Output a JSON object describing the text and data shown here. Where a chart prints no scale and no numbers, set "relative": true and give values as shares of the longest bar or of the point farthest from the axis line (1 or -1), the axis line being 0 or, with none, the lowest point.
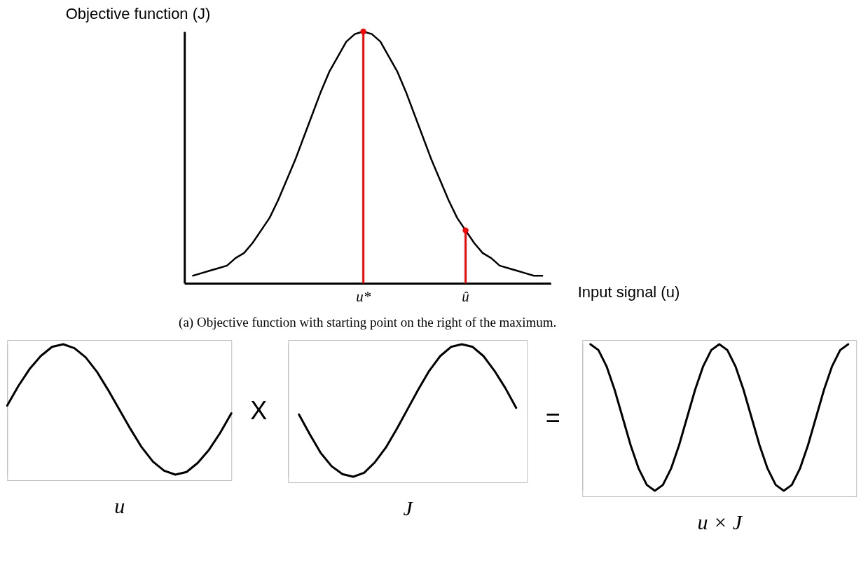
{
  "chart_data": [
    {
      "type": "line",
      "relative": true,
      "xlabel": "Input signal (u)",
      "ylabel": "Objective function (J)",
      "annotations": [
        "(a) Objective function with starting point on the right of the maximum."
      ],
      "categories": [
        null,
        null,
        null,
        null,
        null,
        null,
        null,
        null,
        null,
        null,
        null,
        null,
        null,
        null,
        null,
        null,
        null,
        null,
        null,
        null,
        "u*",
        null,
        null,
        null,
        null,
        null,
        null,
        null,
        null,
        null,
        null,
        null,
        "û",
        null,
        null,
        null,
        null,
        null,
        null,
        null,
        null,
        null
      ],
      "series": [
        {
          "color": "#000000",
          "values": [
            0.03,
            0.04,
            0.05,
            0.06,
            0.07,
            0.1,
            0.12,
            0.16,
            0.21,
            0.26,
            0.33,
            0.41,
            0.49,
            0.58,
            0.67,
            0.76,
            0.84,
            0.9,
            0.96,
            0.99,
            1,
            0.99,
            0.96,
            0.9,
            0.84,
            0.76,
            0.67,
            0.58,
            0.49,
            0.41,
            0.33,
            0.26,
            0.21,
            0.16,
            0.12,
            0.1,
            0.07,
            0.06,
            0.05,
            0.04,
            0.03,
            0.03
          ]
        },
        {
          "type": "lollipop",
          "color": "#ff0000",
          "x": [
            "u*",
            "û"
          ],
          "values": [
            1,
            0.21
          ]
        }
      ]
    },
    {
      "type": "line",
      "relative": true,
      "xlabel": "u",
      "categories": [
        null,
        null,
        null,
        null,
        null,
        null,
        null,
        null,
        null,
        null,
        null,
        null,
        null,
        null,
        null,
        null,
        null,
        null,
        null,
        null,
        null
      ],
      "color": "#000000",
      "values": [
        0.53,
        0.68,
        0.81,
        0.91,
        0.98,
        1.0,
        0.97,
        0.9,
        0.79,
        0.65,
        0.5,
        0.35,
        0.21,
        0.1,
        0.03,
        0,
        0.02,
        0.09,
        0.19,
        0.32,
        0.47
      ]
    },
    {
      "type": "line",
      "relative": true,
      "xlabel": "J",
      "annotations": [
        "X"
      ],
      "categories": [
        null,
        null,
        null,
        null,
        null,
        null,
        null,
        null,
        null,
        null,
        null,
        null,
        null,
        null,
        null,
        null,
        null,
        null,
        null,
        null,
        null
      ],
      "color": "#000000",
      "values": [
        0.47,
        0.32,
        0.18,
        0.08,
        0.02,
        0,
        0.03,
        0.11,
        0.22,
        0.36,
        0.51,
        0.66,
        0.8,
        0.91,
        0.98,
        1,
        0.98,
        0.91,
        0.8,
        0.67,
        0.52
      ]
    },
    {
      "type": "line",
      "relative": true,
      "xlabel": "u × J",
      "annotations": [
        "="
      ],
      "categories": [
        null,
        null,
        null,
        null,
        null,
        null,
        null,
        null,
        null,
        null,
        null,
        null,
        null,
        null,
        null,
        null,
        null,
        null,
        null,
        null,
        null,
        null,
        null,
        null,
        null,
        null,
        null,
        null,
        null,
        null,
        null,
        null,
        null
      ],
      "color": "#000000",
      "values": [
        1,
        0.96,
        0.85,
        0.69,
        0.5,
        0.31,
        0.15,
        0.04,
        0,
        0.04,
        0.15,
        0.31,
        0.5,
        0.69,
        0.85,
        0.96,
        1,
        0.96,
        0.85,
        0.69,
        0.5,
        0.31,
        0.15,
        0.04,
        0,
        0.04,
        0.15,
        0.31,
        0.5,
        0.69,
        0.85,
        0.96,
        1
      ]
    }
  ]
}
